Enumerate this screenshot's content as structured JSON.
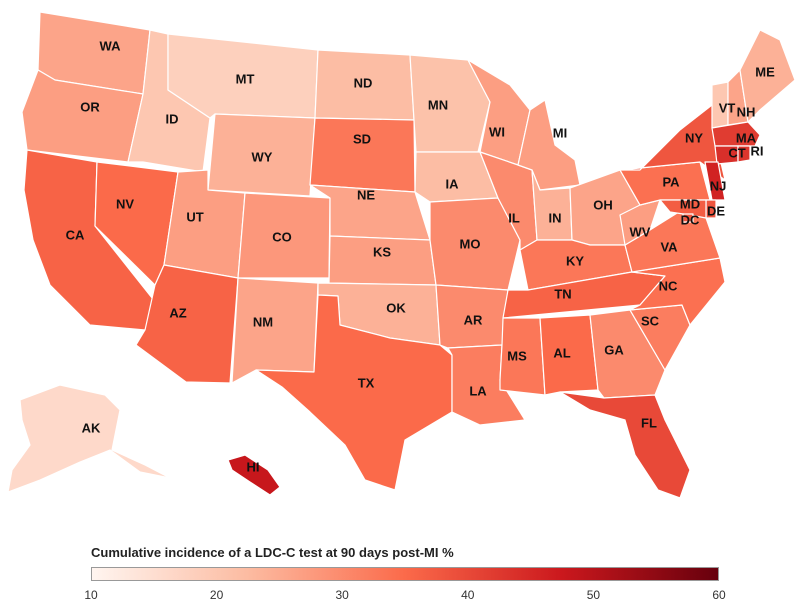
{
  "legend": {
    "title": "Cumulative incidence of a LDC-C test at 90 days post-MI %",
    "min": 10,
    "max": 60,
    "ticks": [
      "10",
      "20",
      "30",
      "40",
      "50",
      "60"
    ],
    "colors": [
      "#fff5f0",
      "#fcbba1",
      "#fb6a4a",
      "#cb181d",
      "#67000d"
    ]
  },
  "states": [
    {
      "abbr": "WA",
      "value": 26
    },
    {
      "abbr": "OR",
      "value": 27
    },
    {
      "abbr": "CA",
      "value": 36
    },
    {
      "abbr": "NV",
      "value": 35
    },
    {
      "abbr": "ID",
      "value": 20
    },
    {
      "abbr": "MT",
      "value": 18
    },
    {
      "abbr": "WY",
      "value": 24
    },
    {
      "abbr": "UT",
      "value": 27
    },
    {
      "abbr": "AZ",
      "value": 36
    },
    {
      "abbr": "CO",
      "value": 28
    },
    {
      "abbr": "NM",
      "value": 26
    },
    {
      "abbr": "ND",
      "value": 22
    },
    {
      "abbr": "SD",
      "value": 33
    },
    {
      "abbr": "NE",
      "value": 26
    },
    {
      "abbr": "KS",
      "value": 27
    },
    {
      "abbr": "OK",
      "value": 24
    },
    {
      "abbr": "TX",
      "value": 35
    },
    {
      "abbr": "MN",
      "value": 21
    },
    {
      "abbr": "IA",
      "value": 22
    },
    {
      "abbr": "MO",
      "value": 30
    },
    {
      "abbr": "AR",
      "value": 30
    },
    {
      "abbr": "LA",
      "value": 32
    },
    {
      "abbr": "WI",
      "value": 27
    },
    {
      "abbr": "IL",
      "value": 30
    },
    {
      "abbr": "MI",
      "value": 27
    },
    {
      "abbr": "IN",
      "value": 24
    },
    {
      "abbr": "OH",
      "value": 26
    },
    {
      "abbr": "KY",
      "value": 33
    },
    {
      "abbr": "TN",
      "value": 36
    },
    {
      "abbr": "MS",
      "value": 33
    },
    {
      "abbr": "AL",
      "value": 35
    },
    {
      "abbr": "GA",
      "value": 30
    },
    {
      "abbr": "FL",
      "value": 40
    },
    {
      "abbr": "SC",
      "value": 32
    },
    {
      "abbr": "NC",
      "value": 34
    },
    {
      "abbr": "VA",
      "value": 33
    },
    {
      "abbr": "WV",
      "value": 27
    },
    {
      "abbr": "PA",
      "value": 34
    },
    {
      "abbr": "NY",
      "value": 38
    },
    {
      "abbr": "VT",
      "value": 20
    },
    {
      "abbr": "NH",
      "value": 26
    },
    {
      "abbr": "ME",
      "value": 24
    },
    {
      "abbr": "MA",
      "value": 42
    },
    {
      "abbr": "CT",
      "value": 44
    },
    {
      "abbr": "RI",
      "value": 43
    },
    {
      "abbr": "NJ",
      "value": 46
    },
    {
      "abbr": "DE",
      "value": 38
    },
    {
      "abbr": "MD",
      "value": 37
    },
    {
      "abbr": "DC",
      "value": 38
    },
    {
      "abbr": "AK",
      "value": 16
    },
    {
      "abbr": "HI",
      "value": 48
    }
  ]
}
